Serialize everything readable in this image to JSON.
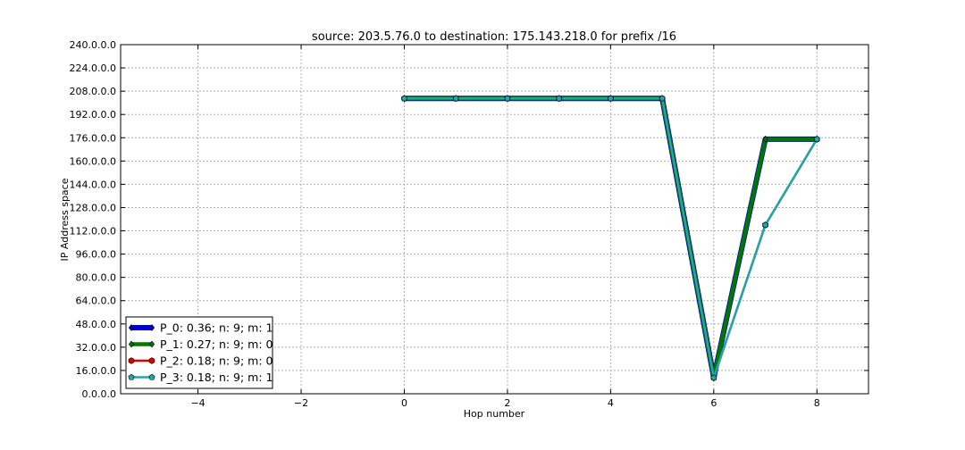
{
  "chart_data": {
    "type": "line",
    "title": "source: 203.5.76.0 to destination: 175.143.218.0 for prefix /16",
    "xlabel": "Hop number",
    "ylabel": "IP Address space",
    "xlim": [
      -5.5,
      9
    ],
    "ylim": [
      0,
      240
    ],
    "x_ticks": [
      -4,
      -2,
      0,
      2,
      4,
      6,
      8
    ],
    "x_tick_labels": [
      "−4",
      "−2",
      "0",
      "2",
      "4",
      "6",
      "8"
    ],
    "y_ticks": [
      0,
      16,
      32,
      48,
      64,
      80,
      96,
      112,
      128,
      144,
      160,
      176,
      192,
      208,
      224,
      240
    ],
    "y_tick_labels": [
      "0.0.0.0",
      "16.0.0.0",
      "32.0.0.0",
      "48.0.0.0",
      "64.0.0.0",
      "80.0.0.0",
      "96.0.0.0",
      "112.0.0.0",
      "128.0.0.0",
      "144.0.0.0",
      "160.0.0.0",
      "176.0.0.0",
      "192.0.0.0",
      "208.0.0.0",
      "224.0.0.0",
      "240.0.0.0"
    ],
    "grid": true,
    "legend_position": "lower-left",
    "series": [
      {
        "name": "P_0: 0.36; n: 9; m: 1",
        "color": "#0000cc",
        "marker": "diamond",
        "x": [
          0,
          1,
          2,
          3,
          4,
          5,
          6,
          7,
          8
        ],
        "y": [
          203,
          203,
          203,
          203,
          203,
          203,
          11,
          175,
          175
        ]
      },
      {
        "name": "P_1: 0.27; n: 9; m: 0",
        "color": "#007700",
        "marker": "diamond",
        "x": [
          0,
          1,
          2,
          3,
          4,
          5,
          6,
          7,
          8
        ],
        "y": [
          203,
          203,
          203,
          203,
          203,
          203,
          11,
          175,
          175
        ]
      },
      {
        "name": "P_2: 0.18; n: 9; m: 0",
        "color": "#dd0000",
        "marker": "hexagon",
        "x": [
          0,
          1,
          2,
          3,
          4,
          5,
          6,
          7,
          8
        ],
        "y": [
          203,
          203,
          203,
          203,
          203,
          203,
          11,
          116,
          175
        ]
      },
      {
        "name": "P_3: 0.18; n: 9; m: 1",
        "color": "#20a8a8",
        "marker": "pentagon",
        "x": [
          0,
          1,
          2,
          3,
          4,
          5,
          6,
          7,
          8
        ],
        "y": [
          203,
          203,
          203,
          203,
          203,
          203,
          11,
          116,
          175
        ]
      }
    ]
  }
}
